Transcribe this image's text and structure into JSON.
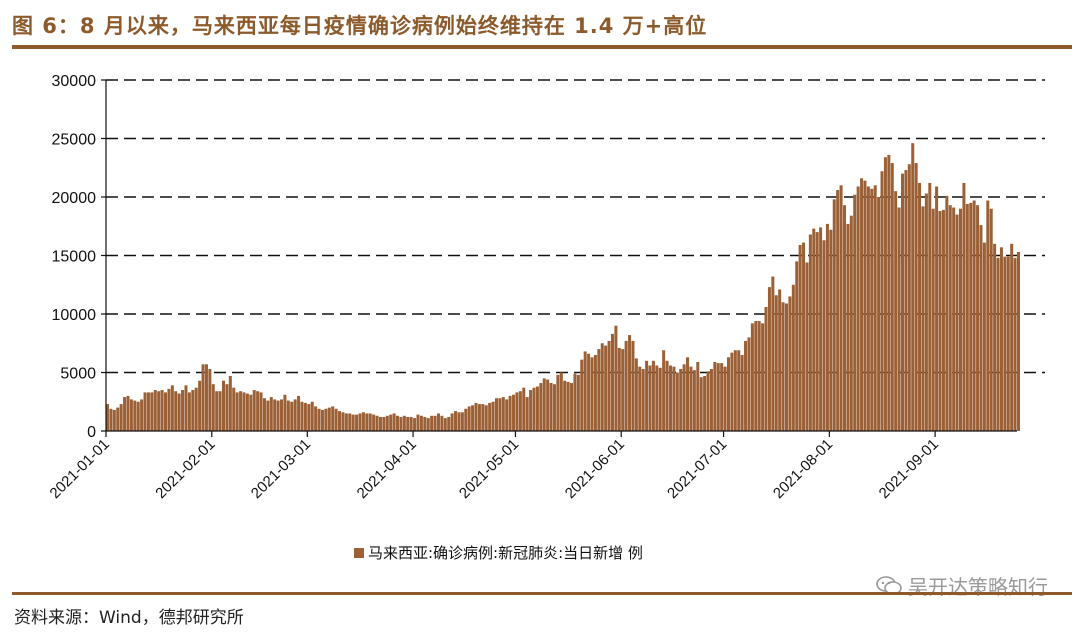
{
  "title": "图 6：8 月以来，马来西亚每日疫情确诊病例始终维持在 1.4 万+高位",
  "source": "资料来源：Wind，德邦研究所",
  "watermark": "吴开达策略知行",
  "colors": {
    "bar": "#9b6035",
    "accent": "#8c5a2b",
    "grid": "#111111"
  },
  "chart_data": {
    "type": "bar",
    "legend": "马来西亚:确诊病例:新冠肺炎:当日新增 例",
    "ylim": [
      0,
      30000
    ],
    "yticks": [
      0,
      5000,
      10000,
      15000,
      20000,
      25000,
      30000
    ],
    "xticks": [
      "2021-01-01",
      "2021-02-01",
      "2021-03-01",
      "2021-04-01",
      "2021-05-01",
      "2021-06-01",
      "2021-07-01",
      "2021-08-01",
      "2021-09-01"
    ],
    "grid": "horizontal dashed",
    "x_start": "2021-01-01",
    "x_end": "2021-09-24",
    "values": [
      2300,
      1900,
      1800,
      2000,
      2300,
      2900,
      3000,
      2700,
      2600,
      2500,
      2700,
      3300,
      3300,
      3300,
      3500,
      3400,
      3500,
      3300,
      3600,
      3900,
      3400,
      3200,
      3500,
      3900,
      3300,
      3500,
      3700,
      4300,
      5700,
      5700,
      5300,
      4000,
      3400,
      3400,
      4300,
      4000,
      4700,
      3700,
      3300,
      3400,
      3300,
      3200,
      3100,
      3500,
      3400,
      3300,
      2800,
      2600,
      2900,
      2700,
      2600,
      2700,
      3100,
      2600,
      2500,
      2700,
      3000,
      2500,
      2400,
      2300,
      2500,
      2100,
      1900,
      1800,
      1900,
      2000,
      2100,
      1900,
      1700,
      1600,
      1500,
      1500,
      1400,
      1400,
      1500,
      1600,
      1500,
      1500,
      1400,
      1300,
      1200,
      1200,
      1300,
      1400,
      1500,
      1300,
      1200,
      1300,
      1200,
      1200,
      1100,
      1400,
      1300,
      1200,
      1100,
      1300,
      1300,
      1500,
      1300,
      1100,
      1200,
      1500,
      1700,
      1600,
      1600,
      1900,
      2100,
      2200,
      2400,
      2300,
      2300,
      2200,
      2400,
      2500,
      2800,
      2800,
      2900,
      2700,
      3000,
      3100,
      3300,
      3400,
      3700,
      2900,
      3500,
      3700,
      3800,
      4100,
      4500,
      4400,
      4100,
      4000,
      4800,
      5000,
      4300,
      4200,
      4100,
      4900,
      4800,
      6100,
      6800,
      6600,
      6300,
      6500,
      7000,
      7500,
      7300,
      7700,
      8300,
      9000,
      7100,
      7000,
      7700,
      8200,
      7700,
      6200,
      5500,
      5300,
      6000,
      5600,
      6000,
      5600,
      5400,
      6900,
      6000,
      5600,
      5500,
      5000,
      5300,
      5700,
      6300,
      5500,
      5200,
      5900,
      4600,
      4700,
      5100,
      5300,
      5900,
      5800,
      5800,
      5500,
      6300,
      6700,
      6900,
      6900,
      6500,
      7700,
      8000,
      9200,
      9400,
      9400,
      9200,
      10600,
      12300,
      13200,
      11600,
      12100,
      11000,
      10900,
      11500,
      12500,
      14500,
      15900,
      16100,
      14400,
      16800,
      17300,
      17000,
      17400,
      16300,
      17700,
      17200,
      19800,
      20600,
      21000,
      19300,
      17700,
      18400,
      20200,
      20900,
      21600,
      21400,
      20900,
      20700,
      21000,
      20000,
      22200,
      23400,
      23600,
      22900,
      20500,
      19100,
      22000,
      22300,
      22800,
      24600,
      22900,
      21200,
      19200,
      20300,
      21200,
      19000,
      20900,
      18800,
      18900,
      20100,
      19300,
      19100,
      18500,
      19000,
      21200,
      19400,
      19500,
      19700,
      19300,
      17600,
      16100,
      19700,
      19000,
      16000,
      14800,
      15700,
      14900,
      14900,
      16000,
      14800,
      15300
    ]
  }
}
